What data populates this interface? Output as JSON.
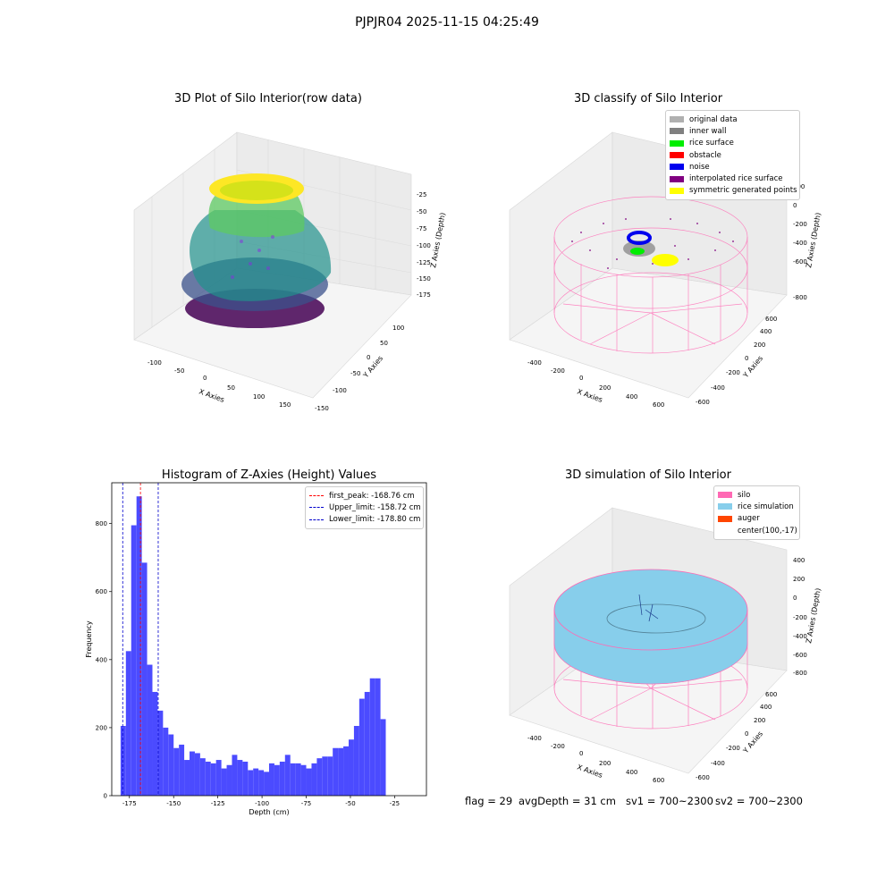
{
  "figure": {
    "suptitle": "PJPJR04 2025-11-15 04:25:49",
    "footer": {
      "flag": "flag = 29",
      "avg_depth": "avgDepth = 31 cm",
      "sv1": "sv1 = 700~2300",
      "sv2": "sv2 = 700~2300"
    }
  },
  "panels": {
    "raw": {
      "title": "3D Plot of Silo Interior(row data)",
      "xlabel": "X Axies",
      "ylabel": "Y Axies",
      "zlabel": "Z Axies (Depth)",
      "xticks": [
        "-100",
        "-50",
        "0",
        "50",
        "100",
        "150"
      ],
      "yticks": [
        "-150",
        "-100",
        "-50",
        "0",
        "50",
        "100"
      ],
      "zticks": [
        "-175",
        "-150",
        "-125",
        "-100",
        "-75",
        "-50",
        "-25"
      ],
      "colormap": [
        "#440154",
        "#31688e",
        "#35b779",
        "#fde725"
      ]
    },
    "classify": {
      "title": "3D classify of Silo Interior",
      "xlabel": "X Axies",
      "ylabel": "Y Axies",
      "zlabel": "Z Axies (Depth)",
      "xticks": [
        "-400",
        "-200",
        "0",
        "200",
        "400",
        "600"
      ],
      "yticks": [
        "-600",
        "-400",
        "-200",
        "0",
        "200",
        "400",
        "600"
      ],
      "zticks": [
        "-800",
        "-600",
        "-400",
        "-200",
        "0",
        "200"
      ],
      "legend": [
        {
          "label": "original data",
          "color": "#b0b0b0"
        },
        {
          "label": "inner wall",
          "color": "#808080"
        },
        {
          "label": "rice surface",
          "color": "#00ee00"
        },
        {
          "label": "obstacle",
          "color": "#ff0000"
        },
        {
          "label": "noise",
          "color": "#0000ee"
        },
        {
          "label": "interpolated rice surface",
          "color": "#800080"
        },
        {
          "label": "symmetric generated points",
          "color": "#ffff00"
        }
      ]
    },
    "simulation": {
      "title": "3D simulation of Silo Interior",
      "xlabel": "X Axies",
      "ylabel": "Y Axies",
      "zlabel": "Z Axies (Depth)",
      "xticks": [
        "-400",
        "-200",
        "0",
        "200",
        "400",
        "600"
      ],
      "yticks": [
        "-600",
        "-400",
        "-200",
        "0",
        "200",
        "400",
        "600"
      ],
      "zticks": [
        "-800",
        "-600",
        "-400",
        "-200",
        "0",
        "200",
        "400"
      ],
      "legend": [
        {
          "label": "silo",
          "color": "#ff69b4"
        },
        {
          "label": "rice simulation",
          "color": "#87ceeb"
        },
        {
          "label": "auger",
          "color": "#ff4500"
        },
        {
          "label": "center(100,-17)",
          "color": ""
        }
      ]
    }
  },
  "chart_data": {
    "type": "bar",
    "title": "Histogram of Z-Axies (Height) Values",
    "xlabel": "Depth (cm)",
    "ylabel": "Frequency",
    "xlim": [
      -185,
      -7
    ],
    "ylim": [
      0,
      920
    ],
    "xticks": [
      -175,
      -150,
      -125,
      -100,
      -75,
      -50,
      -25
    ],
    "yticks": [
      0,
      200,
      400,
      600,
      800
    ],
    "bar_color": "#4b4bff",
    "bins": {
      "start": -180,
      "width": 3,
      "values": [
        205,
        425,
        795,
        880,
        685,
        385,
        305,
        250,
        200,
        180,
        140,
        150,
        105,
        130,
        125,
        110,
        100,
        95,
        105,
        80,
        90,
        120,
        105,
        100,
        75,
        80,
        75,
        70,
        95,
        90,
        100,
        120,
        95,
        95,
        90,
        80,
        95,
        110,
        115,
        115,
        140,
        140,
        145,
        165,
        205,
        285,
        305,
        345,
        345,
        225
      ]
    },
    "vlines": [
      {
        "x": -168.76,
        "label": "first_peak: -168.76 cm",
        "color": "#ff0000"
      },
      {
        "x": -158.72,
        "label": "Upper_limit: -158.72 cm",
        "color": "#0000cc"
      },
      {
        "x": -178.8,
        "label": "Lower_limit: -178.80 cm",
        "color": "#0000cc"
      }
    ]
  }
}
